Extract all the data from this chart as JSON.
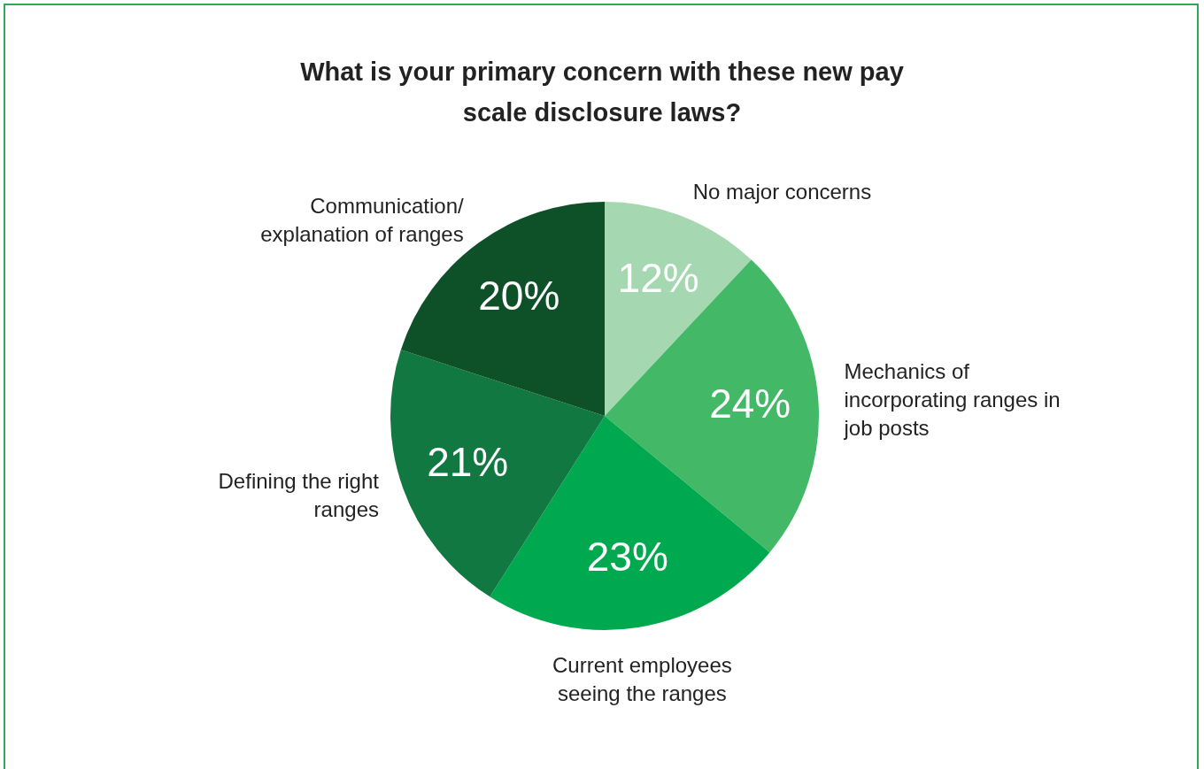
{
  "chart_data": {
    "type": "pie",
    "title": "What is your primary concern with these new pay scale disclosure laws?",
    "categories": [
      "No major concerns",
      "Mechanics of incorporating ranges in job posts",
      "Current employees seeing the ranges",
      "Defining the right ranges",
      "Communication/explanation of ranges"
    ],
    "values": [
      12,
      24,
      23,
      21,
      20
    ],
    "colors": [
      "#a5d7b0",
      "#43b866",
      "#00a94f",
      "#107840",
      "#0e5129"
    ],
    "value_labels": [
      "12%",
      "24%",
      "23%",
      "21%",
      "20%"
    ],
    "legend": false
  }
}
